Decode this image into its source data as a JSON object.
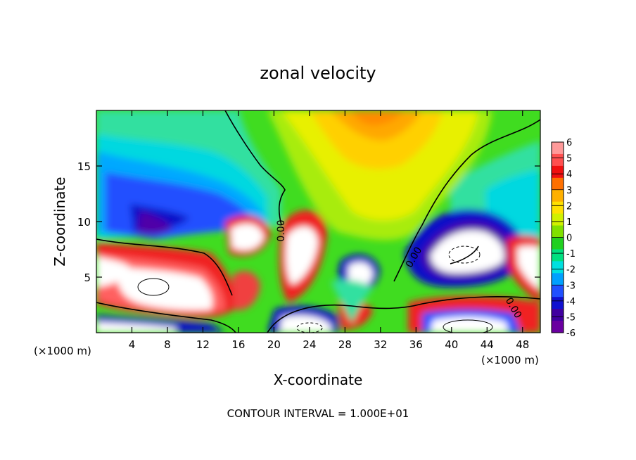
{
  "chart_data": {
    "type": "heatmap",
    "title": "zonal velocity",
    "xlabel": "X-coordinate",
    "ylabel": "Z-coordinate",
    "x_unit_left": "(×1000 m)",
    "x_unit_right": "(×1000 m)",
    "xlim": [
      0,
      50
    ],
    "ylim": [
      0,
      20
    ],
    "x_ticks": [
      4,
      8,
      12,
      16,
      20,
      24,
      28,
      32,
      36,
      40,
      44,
      48
    ],
    "y_ticks": [
      5,
      10,
      15
    ],
    "colorbar": {
      "min": -6,
      "max": 6,
      "labels": [
        6,
        5,
        4,
        3,
        2,
        1,
        0,
        -1,
        -2,
        -3,
        -4,
        -5,
        -6
      ],
      "colors": [
        "#ff9a9a",
        "#ff5050",
        "#f01010",
        "#ff7000",
        "#ffb000",
        "#ffe000",
        "#d0f000",
        "#80e000",
        "#20d020",
        "#00e080",
        "#00e0e0",
        "#00a0ff",
        "#2050ff",
        "#1010d0",
        "#4000a0",
        "#6a00a0"
      ]
    },
    "contour_labels": [
      "0.00",
      "0.00",
      "0.00"
    ],
    "footer": "CONTOUR INTERVAL = 1.000E+01"
  }
}
